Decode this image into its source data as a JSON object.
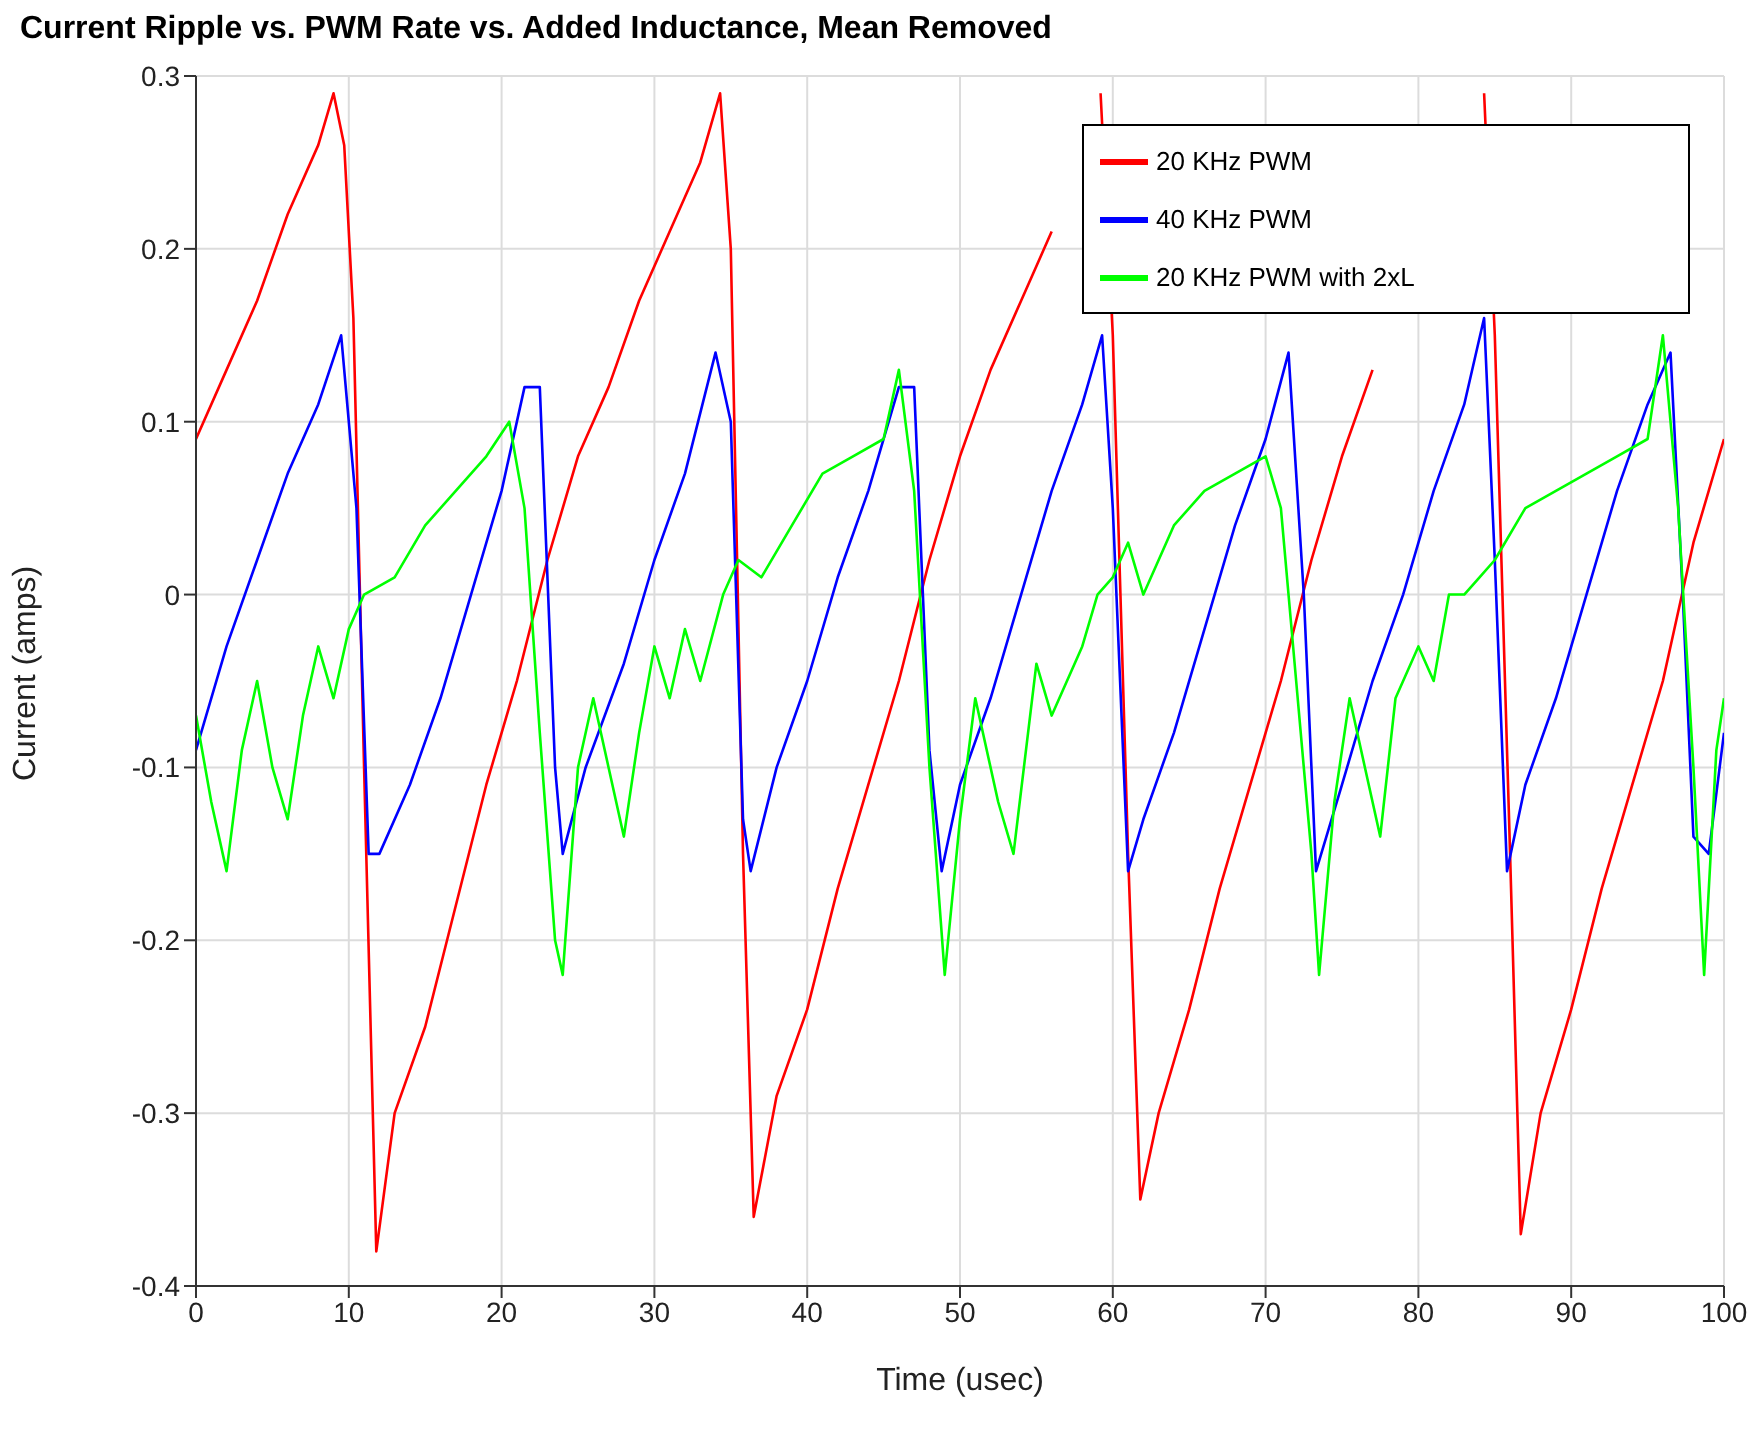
{
  "chart_data": {
    "type": "line",
    "title": "Current Ripple vs. PWM Rate vs. Added Inductance, Mean Removed",
    "xlabel": "Time (usec)",
    "ylabel": "Current (amps)",
    "xlim": [
      0,
      100
    ],
    "xticks": [
      0,
      10,
      20,
      30,
      40,
      50,
      60,
      70,
      80,
      90,
      100
    ],
    "ylim": [
      -0.4,
      0.3
    ],
    "yticks": [
      -0.4,
      -0.3,
      -0.2,
      -0.1,
      0,
      0.1,
      0.2,
      0.3
    ],
    "grid": true,
    "legend": "top right",
    "line_style": "solid",
    "marker": "none",
    "series": [
      {
        "name": "20 KHz PWM",
        "color": "#ff0000",
        "x": [
          0,
          2,
          4,
          6,
          8,
          9,
          9.7,
          10.3,
          11,
          11.8,
          13,
          15,
          17,
          19,
          21,
          23,
          25,
          27,
          29,
          31,
          33,
          34.3,
          35,
          35.8,
          36.5,
          38,
          40,
          42,
          44,
          46,
          48,
          50,
          52,
          54,
          56,
          58,
          59.2,
          60,
          61,
          61.8,
          63,
          65,
          67,
          69,
          71,
          73,
          75,
          77,
          79,
          81,
          83,
          84.3,
          85,
          86,
          86.7,
          88,
          90,
          92,
          94,
          96,
          98,
          100
        ],
        "values": [
          0.09,
          0.13,
          0.17,
          0.22,
          0.26,
          0.29,
          0.26,
          0.16,
          -0.1,
          -0.38,
          -0.3,
          -0.25,
          -0.18,
          -0.11,
          -0.05,
          0.02,
          0.08,
          0.12,
          0.17,
          0.21,
          0.25,
          0.29,
          0.2,
          -0.15,
          -0.36,
          -0.29,
          -0.24,
          -0.17,
          -0.11,
          -0.05,
          0.02,
          0.08,
          0.13,
          0.17,
          0.21,
          null,
          0.29,
          0.15,
          -0.15,
          -0.35,
          -0.3,
          -0.24,
          -0.17,
          -0.11,
          -0.05,
          0.02,
          0.08,
          0.13,
          null,
          null,
          null,
          0.29,
          0.15,
          -0.15,
          -0.37,
          -0.3,
          -0.24,
          -0.17,
          -0.11,
          -0.05,
          0.03,
          0.09
        ]
      },
      {
        "name": "40 KHz PWM",
        "color": "#0000ff",
        "x": [
          0,
          2,
          4,
          6,
          8,
          9.5,
          10.5,
          11.3,
          12,
          14,
          16,
          18,
          20,
          21.5,
          22.5,
          23.5,
          24,
          25.5,
          28,
          30,
          32,
          34,
          35,
          35.8,
          36.3,
          38,
          40,
          42,
          44,
          46,
          47,
          48,
          48.8,
          50,
          52,
          54,
          56,
          58,
          59.3,
          60,
          61,
          62,
          64,
          66,
          68,
          70,
          71.5,
          72.5,
          73.3,
          75,
          77,
          79,
          81,
          83,
          84.3,
          85,
          85.8,
          87,
          89,
          91,
          93,
          95,
          96.5,
          97.3,
          98,
          99,
          100
        ],
        "values": [
          -0.09,
          -0.03,
          0.02,
          0.07,
          0.11,
          0.15,
          0.05,
          -0.15,
          -0.15,
          -0.11,
          -0.06,
          0.0,
          0.06,
          0.12,
          0.12,
          -0.1,
          -0.15,
          -0.1,
          -0.04,
          0.02,
          0.07,
          0.14,
          0.1,
          -0.13,
          -0.16,
          -0.1,
          -0.05,
          0.01,
          0.06,
          0.12,
          0.12,
          -0.09,
          -0.16,
          -0.11,
          -0.06,
          0.0,
          0.06,
          0.11,
          0.15,
          0.05,
          -0.16,
          -0.13,
          -0.08,
          -0.02,
          0.04,
          0.09,
          0.14,
          0.0,
          -0.16,
          -0.11,
          -0.05,
          0.0,
          0.06,
          0.11,
          0.16,
          0.02,
          -0.16,
          -0.11,
          -0.06,
          0.0,
          0.06,
          0.11,
          0.14,
          0.0,
          -0.14,
          -0.15,
          -0.08
        ]
      },
      {
        "name": "20 KHz PWM with 2xL",
        "color": "#00ff00",
        "x": [
          0,
          1,
          2,
          3,
          4,
          5,
          6,
          7,
          8,
          9,
          10,
          11,
          13,
          15,
          17,
          19,
          20.5,
          21.5,
          22.5,
          23.5,
          24,
          25,
          26,
          27,
          28,
          29,
          30,
          31,
          32,
          33,
          34.5,
          35.5,
          37,
          39,
          41,
          43,
          45,
          46,
          47,
          48,
          49,
          50,
          51,
          52.5,
          53.5,
          55,
          56,
          57,
          58,
          59,
          60,
          61,
          62,
          64,
          66,
          68,
          70,
          71,
          72,
          73,
          73.5,
          74.5,
          75.5,
          76.5,
          77.5,
          78.5,
          80,
          81,
          82,
          83,
          84,
          85,
          87,
          89,
          91,
          93,
          95,
          96,
          97,
          98,
          98.7,
          99.5,
          100
        ],
        "values": [
          -0.07,
          -0.12,
          -0.16,
          -0.09,
          -0.05,
          -0.1,
          -0.13,
          -0.07,
          -0.03,
          -0.06,
          -0.02,
          0.0,
          0.01,
          0.04,
          0.06,
          0.08,
          0.1,
          0.05,
          -0.08,
          -0.2,
          -0.22,
          -0.1,
          -0.06,
          -0.1,
          -0.14,
          -0.08,
          -0.03,
          -0.06,
          -0.02,
          -0.05,
          0.0,
          0.02,
          0.01,
          0.04,
          0.07,
          0.08,
          0.09,
          0.13,
          0.06,
          -0.1,
          -0.22,
          -0.13,
          -0.06,
          -0.12,
          -0.15,
          -0.04,
          -0.07,
          -0.05,
          -0.03,
          0.0,
          0.01,
          0.03,
          0.0,
          0.04,
          0.06,
          0.07,
          0.08,
          0.05,
          -0.05,
          -0.15,
          -0.22,
          -0.12,
          -0.06,
          -0.1,
          -0.14,
          -0.06,
          -0.03,
          -0.05,
          0.0,
          0.0,
          0.01,
          0.02,
          0.05,
          0.06,
          0.07,
          0.08,
          0.09,
          0.15,
          0.05,
          -0.1,
          -0.22,
          -0.09,
          -0.06
        ]
      }
    ]
  }
}
